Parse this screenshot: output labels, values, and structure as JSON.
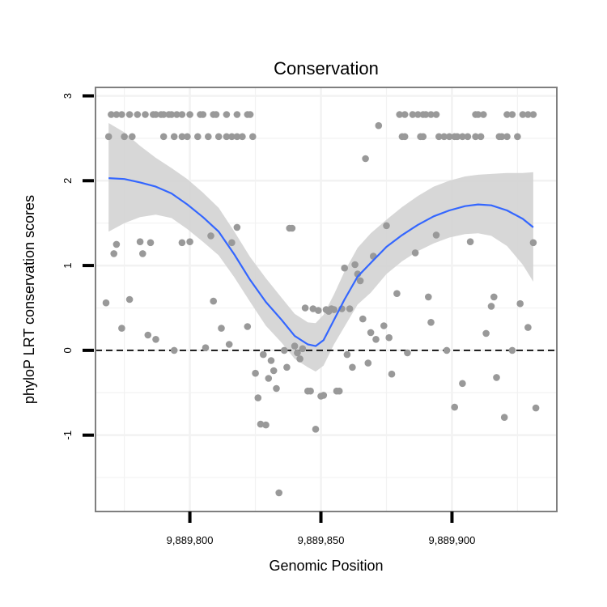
{
  "chart_data": {
    "type": "scatter",
    "title": "Conservation",
    "xlabel": "Genomic Position",
    "ylabel": "phyloP LRT conservation scores",
    "xlim": [
      9889764,
      9889940
    ],
    "ylim": [
      -1.9,
      3.1
    ],
    "x_ticks": [
      9889800,
      9889850,
      9889900
    ],
    "x_tick_labels": [
      "9,889,800",
      "9,889,850",
      "9,889,900"
    ],
    "y_ticks": [
      -1,
      0,
      1,
      2,
      3
    ],
    "y_tick_labels": [
      "-1",
      "0",
      "1",
      "2",
      "3"
    ],
    "grid": true,
    "reference_line": {
      "y": 0,
      "style": "dashed"
    },
    "colors": {
      "points": "#999999",
      "smooth_line": "#3366FF",
      "confidence_band": "#d3d3d3",
      "panel_border": "#7f7f7f",
      "grid": "#f2f2f2"
    },
    "points": [
      {
        "x": 9889770,
        "y": 2.78
      },
      {
        "x": 9889772,
        "y": 2.78
      },
      {
        "x": 9889774,
        "y": 2.78
      },
      {
        "x": 9889777,
        "y": 2.78
      },
      {
        "x": 9889780,
        "y": 2.78
      },
      {
        "x": 9889783,
        "y": 2.78
      },
      {
        "x": 9889786,
        "y": 2.78
      },
      {
        "x": 9889787,
        "y": 2.78
      },
      {
        "x": 9889789,
        "y": 2.78
      },
      {
        "x": 9889790,
        "y": 2.78
      },
      {
        "x": 9889792,
        "y": 2.78
      },
      {
        "x": 9889793,
        "y": 2.78
      },
      {
        "x": 9889795,
        "y": 2.78
      },
      {
        "x": 9889797,
        "y": 2.78
      },
      {
        "x": 9889800,
        "y": 2.78
      },
      {
        "x": 9889804,
        "y": 2.78
      },
      {
        "x": 9889805,
        "y": 2.78
      },
      {
        "x": 9889809,
        "y": 2.78
      },
      {
        "x": 9889810,
        "y": 2.78
      },
      {
        "x": 9889814,
        "y": 2.78
      },
      {
        "x": 9889818,
        "y": 2.78
      },
      {
        "x": 9889822,
        "y": 2.78
      },
      {
        "x": 9889823,
        "y": 2.78
      },
      {
        "x": 9889769,
        "y": 2.52
      },
      {
        "x": 9889775,
        "y": 2.52
      },
      {
        "x": 9889778,
        "y": 2.52
      },
      {
        "x": 9889790,
        "y": 2.52
      },
      {
        "x": 9889794,
        "y": 2.52
      },
      {
        "x": 9889797,
        "y": 2.52
      },
      {
        "x": 9889799,
        "y": 2.52
      },
      {
        "x": 9889803,
        "y": 2.52
      },
      {
        "x": 9889807,
        "y": 2.52
      },
      {
        "x": 9889811,
        "y": 2.52
      },
      {
        "x": 9889814,
        "y": 2.52
      },
      {
        "x": 9889816,
        "y": 2.52
      },
      {
        "x": 9889818,
        "y": 2.52
      },
      {
        "x": 9889820,
        "y": 2.52
      },
      {
        "x": 9889824,
        "y": 2.52
      },
      {
        "x": 9889768,
        "y": 0.56
      },
      {
        "x": 9889771,
        "y": 1.14
      },
      {
        "x": 9889772,
        "y": 1.25
      },
      {
        "x": 9889774,
        "y": 0.26
      },
      {
        "x": 9889777,
        "y": 0.6
      },
      {
        "x": 9889781,
        "y": 1.28
      },
      {
        "x": 9889782,
        "y": 1.14
      },
      {
        "x": 9889784,
        "y": 0.18
      },
      {
        "x": 9889785,
        "y": 1.27
      },
      {
        "x": 9889787,
        "y": 0.13
      },
      {
        "x": 9889794,
        "y": 0.0
      },
      {
        "x": 9889797,
        "y": 1.27
      },
      {
        "x": 9889800,
        "y": 1.28
      },
      {
        "x": 9889806,
        "y": 0.03
      },
      {
        "x": 9889808,
        "y": 1.35
      },
      {
        "x": 9889809,
        "y": 0.58
      },
      {
        "x": 9889812,
        "y": 0.26
      },
      {
        "x": 9889815,
        "y": 0.07
      },
      {
        "x": 9889816,
        "y": 1.27
      },
      {
        "x": 9889818,
        "y": 1.45
      },
      {
        "x": 9889822,
        "y": 0.28
      },
      {
        "x": 9889825,
        "y": -0.27
      },
      {
        "x": 9889826,
        "y": -0.56
      },
      {
        "x": 9889827,
        "y": -0.87
      },
      {
        "x": 9889828,
        "y": -0.05
      },
      {
        "x": 9889829,
        "y": -0.88
      },
      {
        "x": 9889830,
        "y": -0.33
      },
      {
        "x": 9889831,
        "y": -0.12
      },
      {
        "x": 9889832,
        "y": -0.24
      },
      {
        "x": 9889833,
        "y": -0.45
      },
      {
        "x": 9889834,
        "y": -1.68
      },
      {
        "x": 9889836,
        "y": 0.0
      },
      {
        "x": 9889837,
        "y": -0.2
      },
      {
        "x": 9889838,
        "y": 1.44
      },
      {
        "x": 9889839,
        "y": 1.44
      },
      {
        "x": 9889840,
        "y": 0.05
      },
      {
        "x": 9889841,
        "y": -0.03
      },
      {
        "x": 9889842,
        "y": -0.1
      },
      {
        "x": 9889843,
        "y": 0.02
      },
      {
        "x": 9889844,
        "y": 0.5
      },
      {
        "x": 9889845,
        "y": -0.48
      },
      {
        "x": 9889846,
        "y": -0.48
      },
      {
        "x": 9889847,
        "y": 0.49
      },
      {
        "x": 9889848,
        "y": -0.93
      },
      {
        "x": 9889849,
        "y": 0.47
      },
      {
        "x": 9889850,
        "y": -0.54
      },
      {
        "x": 9889851,
        "y": -0.53
      },
      {
        "x": 9889852,
        "y": 0.48
      },
      {
        "x": 9889853,
        "y": 0.46
      },
      {
        "x": 9889854,
        "y": 0.49
      },
      {
        "x": 9889855,
        "y": 0.48
      },
      {
        "x": 9889856,
        "y": -0.48
      },
      {
        "x": 9889857,
        "y": -0.48
      },
      {
        "x": 9889858,
        "y": 0.49
      },
      {
        "x": 9889859,
        "y": 0.97
      },
      {
        "x": 9889860,
        "y": -0.05
      },
      {
        "x": 9889861,
        "y": 0.49
      },
      {
        "x": 9889862,
        "y": -0.2
      },
      {
        "x": 9889863,
        "y": 1.01
      },
      {
        "x": 9889864,
        "y": 0.9
      },
      {
        "x": 9889865,
        "y": 0.82
      },
      {
        "x": 9889866,
        "y": 0.37
      },
      {
        "x": 9889867,
        "y": 2.26
      },
      {
        "x": 9889868,
        "y": -0.15
      },
      {
        "x": 9889869,
        "y": 0.21
      },
      {
        "x": 9889870,
        "y": 1.11
      },
      {
        "x": 9889871,
        "y": 0.13
      },
      {
        "x": 9889872,
        "y": 2.65
      },
      {
        "x": 9889874,
        "y": 0.29
      },
      {
        "x": 9889875,
        "y": 1.47
      },
      {
        "x": 9889876,
        "y": 0.15
      },
      {
        "x": 9889877,
        "y": -0.28
      },
      {
        "x": 9889879,
        "y": 0.67
      },
      {
        "x": 9889883,
        "y": -0.03
      },
      {
        "x": 9889886,
        "y": 1.15
      },
      {
        "x": 9889891,
        "y": 0.63
      },
      {
        "x": 9889892,
        "y": 0.33
      },
      {
        "x": 9889894,
        "y": 1.36
      },
      {
        "x": 9889898,
        "y": 0.0
      },
      {
        "x": 9889901,
        "y": -0.67
      },
      {
        "x": 9889904,
        "y": -0.39
      },
      {
        "x": 9889907,
        "y": 1.28
      },
      {
        "x": 9889913,
        "y": 0.2
      },
      {
        "x": 9889915,
        "y": 0.52
      },
      {
        "x": 9889916,
        "y": 0.63
      },
      {
        "x": 9889917,
        "y": -0.32
      },
      {
        "x": 9889920,
        "y": -0.79
      },
      {
        "x": 9889923,
        "y": 0.0
      },
      {
        "x": 9889926,
        "y": 0.55
      },
      {
        "x": 9889929,
        "y": 0.27
      },
      {
        "x": 9889931,
        "y": 1.27
      },
      {
        "x": 9889932,
        "y": -0.68
      },
      {
        "x": 9889880,
        "y": 2.78
      },
      {
        "x": 9889882,
        "y": 2.78
      },
      {
        "x": 9889885,
        "y": 2.78
      },
      {
        "x": 9889887,
        "y": 2.78
      },
      {
        "x": 9889889,
        "y": 2.78
      },
      {
        "x": 9889890,
        "y": 2.78
      },
      {
        "x": 9889892,
        "y": 2.78
      },
      {
        "x": 9889894,
        "y": 2.78
      },
      {
        "x": 9889909,
        "y": 2.78
      },
      {
        "x": 9889910,
        "y": 2.78
      },
      {
        "x": 9889912,
        "y": 2.78
      },
      {
        "x": 9889921,
        "y": 2.78
      },
      {
        "x": 9889923,
        "y": 2.78
      },
      {
        "x": 9889927,
        "y": 2.78
      },
      {
        "x": 9889929,
        "y": 2.78
      },
      {
        "x": 9889931,
        "y": 2.78
      },
      {
        "x": 9889881,
        "y": 2.52
      },
      {
        "x": 9889882,
        "y": 2.52
      },
      {
        "x": 9889888,
        "y": 2.52
      },
      {
        "x": 9889889,
        "y": 2.52
      },
      {
        "x": 9889895,
        "y": 2.52
      },
      {
        "x": 9889897,
        "y": 2.52
      },
      {
        "x": 9889899,
        "y": 2.52
      },
      {
        "x": 9889901,
        "y": 2.52
      },
      {
        "x": 9889902,
        "y": 2.52
      },
      {
        "x": 9889904,
        "y": 2.52
      },
      {
        "x": 9889906,
        "y": 2.52
      },
      {
        "x": 9889909,
        "y": 2.52
      },
      {
        "x": 9889911,
        "y": 2.52
      },
      {
        "x": 9889918,
        "y": 2.52
      },
      {
        "x": 9889919,
        "y": 2.52
      },
      {
        "x": 9889921,
        "y": 2.52
      },
      {
        "x": 9889925,
        "y": 2.52
      }
    ],
    "smooth": {
      "x": [
        9889769,
        9889775,
        9889781,
        9889787,
        9889793,
        9889799,
        9889805,
        9889811,
        9889817,
        9889823,
        9889829,
        9889835,
        9889840,
        9889845,
        9889848,
        9889851,
        9889855,
        9889859,
        9889864,
        9889869,
        9889875,
        9889881,
        9889887,
        9889893,
        9889899,
        9889905,
        9889910,
        9889915,
        9889921,
        9889927,
        9889931
      ],
      "y": [
        2.03,
        2.02,
        1.98,
        1.93,
        1.85,
        1.72,
        1.57,
        1.4,
        1.13,
        0.83,
        0.57,
        0.36,
        0.17,
        0.07,
        0.05,
        0.12,
        0.36,
        0.6,
        0.87,
        1.03,
        1.22,
        1.36,
        1.48,
        1.58,
        1.65,
        1.7,
        1.72,
        1.71,
        1.65,
        1.55,
        1.45
      ],
      "upper": [
        2.68,
        2.57,
        2.41,
        2.27,
        2.15,
        2.02,
        1.86,
        1.68,
        1.4,
        1.1,
        0.85,
        0.62,
        0.43,
        0.33,
        0.32,
        0.42,
        0.66,
        0.93,
        1.21,
        1.38,
        1.54,
        1.69,
        1.82,
        1.93,
        2.0,
        2.05,
        2.07,
        2.08,
        2.09,
        2.09,
        2.1
      ],
      "lower": [
        1.4,
        1.5,
        1.57,
        1.6,
        1.56,
        1.43,
        1.28,
        1.12,
        0.86,
        0.57,
        0.29,
        0.09,
        -0.1,
        -0.2,
        -0.25,
        -0.18,
        0.07,
        0.28,
        0.54,
        0.68,
        0.9,
        1.05,
        1.17,
        1.26,
        1.33,
        1.37,
        1.38,
        1.35,
        1.23,
        1.01,
        0.81
      ]
    }
  }
}
